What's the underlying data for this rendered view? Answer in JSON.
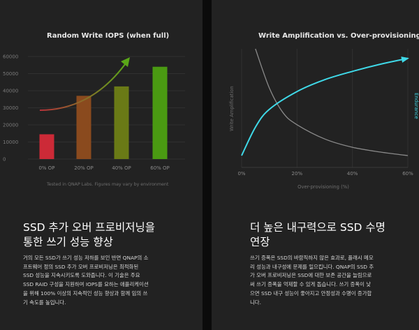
{
  "left": {
    "chart_title": "Random Write IOPS (when full)",
    "footnote": "Tested in QNAP Labs. Figures may vary by environment",
    "heading_line1": "SSD 추가 오버 프로비저닝을",
    "heading_line2": "통한 쓰기 성능 향상",
    "body_lines": [
      "거의 모든 SSD가 쓰기 성능 저하를 보인 반면 QNAP의 소",
      "프트웨어 정의 SSD 추가 오버 프로비저닝은 최적화된",
      "SSD 성능을 지속시키도록 도와줍니다. 이 기술은 주요",
      "SSD RAID 구성을 지원하여 IOPS를 요하는 애플리케이션",
      "을 위해 100% 이상의 지속적인 성능 향상과 함께 임의 쓰",
      "기 속도를 높입니다."
    ]
  },
  "right": {
    "chart_title": "Write Amplification vs. Over-provisioning",
    "heading_line1": "더 높은 내구력으로 SSD 수명",
    "heading_line2": "연장",
    "body_lines": [
      "쓰기 증폭은 SSD의 바람직하지 않은 효과로, 플래시 메모",
      "리 성능과 내구성에 문제를 일으킵니다. QNAP의 SSD 추",
      "가 오버 프로비저닝은 SSD에 대한 보존 공간을 늘림으로",
      "써 쓰기 증폭을 억제할 수 있게 돕습니다. 쓰기 증폭이 낮",
      "으면 SSD 내구 성능이 좋아지고 안정성과 수명이 증가합",
      "니다."
    ]
  },
  "colors": {
    "background": "#222222",
    "endurance": "#3fd9e8",
    "write_amp": "#8a8a8a",
    "bar_low": "#d32a36",
    "bar_high": "#4a9a12"
  },
  "chart_data": [
    {
      "type": "bar",
      "title": "Random Write IOPS (when full)",
      "categories": [
        "0% OP",
        "20% OP",
        "40% OP",
        "60% OP"
      ],
      "values": [
        14500,
        37000,
        42500,
        54000
      ],
      "yticks": [
        0,
        10000,
        20000,
        30000,
        40000,
        50000,
        60000
      ],
      "ylim": [
        0,
        60000
      ],
      "grid": true,
      "bar_colors": [
        "#cc2a37",
        "#8a4a1e",
        "#6a7a16",
        "#4a9a12"
      ],
      "trend": "rising arrow from 0% OP to 60% OP"
    },
    {
      "type": "line",
      "title": "Write Amplification vs. Over-provisioning",
      "xlabel": "Over-provisioning (%)",
      "xticks": [
        "0%",
        "20%",
        "40%",
        "60%"
      ],
      "xlim": [
        0,
        60
      ],
      "series": [
        {
          "name": "Write Amplification",
          "x": [
            5,
            10,
            15,
            20,
            30,
            40,
            50,
            60
          ],
          "y": [
            10,
            6.7,
            4.6,
            3.6,
            2.4,
            1.7,
            1.3,
            1.0
          ],
          "color": "#8a8a8a"
        },
        {
          "name": "Endurance",
          "x": [
            0,
            5,
            10,
            20,
            30,
            40,
            50,
            60
          ],
          "y": [
            1.0,
            3.4,
            4.9,
            6.4,
            7.4,
            8.1,
            8.7,
            9.2
          ],
          "color": "#3fd9e8"
        }
      ],
      "grid": true
    }
  ]
}
